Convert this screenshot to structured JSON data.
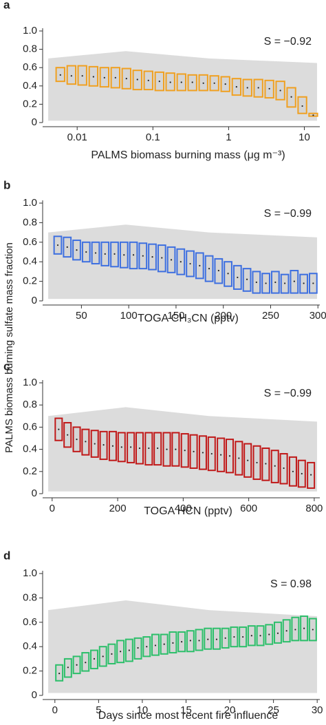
{
  "y_axis_label": "PALMS biomass burning sulfate mass fraction",
  "chart_data": [
    {
      "type": "box",
      "panel": "a",
      "annotation": "S = −0.92",
      "x_label": "PALMS biomass burning mass (μg m⁻³)",
      "color": "#f0a020",
      "log_x": true,
      "xlim": [
        0.0035,
        16
      ],
      "xticks": [
        0.01,
        0.1,
        1,
        10
      ],
      "ylim": [
        0,
        1
      ],
      "yticks": [
        0,
        0.2,
        0.4,
        0.6,
        0.8,
        {
          "value": 1,
          "label": "1.0"
        }
      ],
      "x": [
        0.006,
        0.0084,
        0.0117,
        0.0164,
        0.0229,
        0.032,
        0.0447,
        0.0624,
        0.0872,
        0.122,
        0.17,
        0.238,
        0.332,
        0.464,
        0.648,
        0.906,
        1.27,
        1.77,
        2.47,
        3.45,
        4.82,
        6.73,
        9.4,
        13.1
      ],
      "upper": [
        0.6,
        0.62,
        0.62,
        0.61,
        0.6,
        0.6,
        0.59,
        0.57,
        0.56,
        0.55,
        0.54,
        0.53,
        0.52,
        0.52,
        0.51,
        0.5,
        0.48,
        0.47,
        0.47,
        0.46,
        0.45,
        0.38,
        0.28,
        0.1
      ],
      "lower": [
        0.45,
        0.42,
        0.41,
        0.4,
        0.39,
        0.38,
        0.37,
        0.36,
        0.36,
        0.35,
        0.35,
        0.35,
        0.35,
        0.35,
        0.35,
        0.34,
        0.3,
        0.29,
        0.28,
        0.27,
        0.25,
        0.17,
        0.1,
        0.07
      ],
      "median": [
        0.52,
        0.51,
        0.51,
        0.5,
        0.49,
        0.49,
        0.48,
        0.47,
        0.46,
        0.45,
        0.44,
        0.44,
        0.44,
        0.43,
        0.43,
        0.42,
        0.39,
        0.38,
        0.38,
        0.37,
        0.35,
        0.28,
        0.18,
        0.08
      ]
    },
    {
      "type": "box",
      "panel": "b",
      "annotation": "S = −0.99",
      "x_label": "TOGA CH₃CN (pptv)",
      "color": "#3d6fe0",
      "log_x": false,
      "xlim": [
        9,
        302
      ],
      "xticks": [
        50,
        100,
        150,
        200,
        250,
        300
      ],
      "ylim": [
        0,
        1
      ],
      "yticks": [
        0,
        0.2,
        0.4,
        0.6,
        0.8,
        {
          "value": 1,
          "label": "1.0"
        }
      ],
      "x": [
        25,
        35,
        45,
        55,
        65,
        75,
        85,
        95,
        105,
        115,
        125,
        135,
        145,
        155,
        165,
        175,
        185,
        195,
        205,
        215,
        225,
        235,
        245,
        255,
        265,
        275,
        285,
        295
      ],
      "upper": [
        0.66,
        0.65,
        0.62,
        0.6,
        0.6,
        0.6,
        0.6,
        0.6,
        0.6,
        0.59,
        0.58,
        0.57,
        0.55,
        0.53,
        0.51,
        0.49,
        0.46,
        0.43,
        0.4,
        0.36,
        0.33,
        0.3,
        0.28,
        0.3,
        0.27,
        0.31,
        0.27,
        0.28
      ],
      "lower": [
        0.48,
        0.45,
        0.42,
        0.4,
        0.38,
        0.36,
        0.35,
        0.34,
        0.33,
        0.33,
        0.32,
        0.3,
        0.29,
        0.27,
        0.25,
        0.23,
        0.2,
        0.18,
        0.15,
        0.12,
        0.1,
        0.08,
        0.08,
        0.08,
        0.08,
        0.08,
        0.08,
        0.08
      ],
      "median": [
        0.57,
        0.55,
        0.52,
        0.5,
        0.49,
        0.48,
        0.48,
        0.47,
        0.47,
        0.46,
        0.45,
        0.44,
        0.42,
        0.4,
        0.38,
        0.36,
        0.33,
        0.31,
        0.28,
        0.24,
        0.22,
        0.19,
        0.18,
        0.19,
        0.18,
        0.2,
        0.18,
        0.18
      ]
    },
    {
      "type": "box",
      "panel": "c",
      "annotation": "S = −0.99",
      "x_label": "TOGA HCN (pptv)",
      "color": "#c01818",
      "log_x": false,
      "xlim": [
        -29,
        817
      ],
      "xticks": [
        0,
        200,
        400,
        600,
        800
      ],
      "ylim": [
        0,
        1
      ],
      "yticks": [
        0,
        0.2,
        0.4,
        0.6,
        0.8,
        {
          "value": 1,
          "label": "1.0"
        }
      ],
      "x": [
        20,
        47,
        75,
        102,
        130,
        157,
        185,
        212,
        240,
        267,
        295,
        322,
        350,
        377,
        405,
        432,
        460,
        487,
        515,
        542,
        570,
        597,
        625,
        652,
        680,
        707,
        735,
        762,
        790
      ],
      "upper": [
        0.68,
        0.64,
        0.6,
        0.58,
        0.57,
        0.56,
        0.56,
        0.55,
        0.55,
        0.55,
        0.55,
        0.55,
        0.55,
        0.55,
        0.54,
        0.53,
        0.52,
        0.51,
        0.5,
        0.49,
        0.47,
        0.45,
        0.43,
        0.41,
        0.39,
        0.36,
        0.33,
        0.3,
        0.28
      ],
      "lower": [
        0.48,
        0.42,
        0.38,
        0.35,
        0.33,
        0.31,
        0.3,
        0.29,
        0.28,
        0.27,
        0.26,
        0.26,
        0.25,
        0.25,
        0.24,
        0.23,
        0.22,
        0.21,
        0.2,
        0.19,
        0.17,
        0.15,
        0.13,
        0.12,
        0.1,
        0.09,
        0.07,
        0.06,
        0.05
      ],
      "median": [
        0.58,
        0.53,
        0.49,
        0.47,
        0.45,
        0.44,
        0.43,
        0.42,
        0.42,
        0.41,
        0.41,
        0.41,
        0.4,
        0.4,
        0.39,
        0.38,
        0.37,
        0.36,
        0.35,
        0.34,
        0.32,
        0.3,
        0.28,
        0.27,
        0.25,
        0.23,
        0.2,
        0.18,
        0.17
      ]
    },
    {
      "type": "box",
      "panel": "d",
      "annotation": "S = 0.98",
      "x_label": "Days since most recent fire influence",
      "color": "#2cbf6a",
      "log_x": false,
      "xlim": [
        -1.4,
        30.3
      ],
      "xticks": [
        0,
        5,
        10,
        15,
        20,
        25,
        30
      ],
      "ylim": [
        0,
        1
      ],
      "yticks": [
        0,
        0.2,
        0.4,
        0.6,
        0.8,
        {
          "value": 1,
          "label": "1.0"
        }
      ],
      "x": [
        0.5,
        1.5,
        2.5,
        3.5,
        4.5,
        5.5,
        6.5,
        7.5,
        8.5,
        9.5,
        10.5,
        11.5,
        12.5,
        13.5,
        14.5,
        15.5,
        16.5,
        17.5,
        18.5,
        19.5,
        20.5,
        21.5,
        22.5,
        23.5,
        24.5,
        25.5,
        26.5,
        27.5,
        28.5,
        29.5
      ],
      "upper": [
        0.25,
        0.3,
        0.32,
        0.35,
        0.37,
        0.4,
        0.42,
        0.45,
        0.46,
        0.47,
        0.48,
        0.5,
        0.5,
        0.52,
        0.52,
        0.53,
        0.54,
        0.55,
        0.55,
        0.55,
        0.56,
        0.56,
        0.57,
        0.57,
        0.58,
        0.6,
        0.62,
        0.64,
        0.65,
        0.63
      ],
      "lower": [
        0.12,
        0.15,
        0.18,
        0.2,
        0.22,
        0.24,
        0.26,
        0.27,
        0.28,
        0.3,
        0.32,
        0.33,
        0.34,
        0.35,
        0.36,
        0.36,
        0.37,
        0.38,
        0.38,
        0.39,
        0.4,
        0.4,
        0.41,
        0.41,
        0.42,
        0.43,
        0.44,
        0.45,
        0.45,
        0.45
      ],
      "median": [
        0.18,
        0.23,
        0.25,
        0.27,
        0.3,
        0.32,
        0.34,
        0.36,
        0.37,
        0.39,
        0.4,
        0.41,
        0.42,
        0.43,
        0.44,
        0.45,
        0.45,
        0.46,
        0.46,
        0.47,
        0.48,
        0.48,
        0.49,
        0.49,
        0.5,
        0.51,
        0.53,
        0.54,
        0.55,
        0.54
      ]
    }
  ]
}
